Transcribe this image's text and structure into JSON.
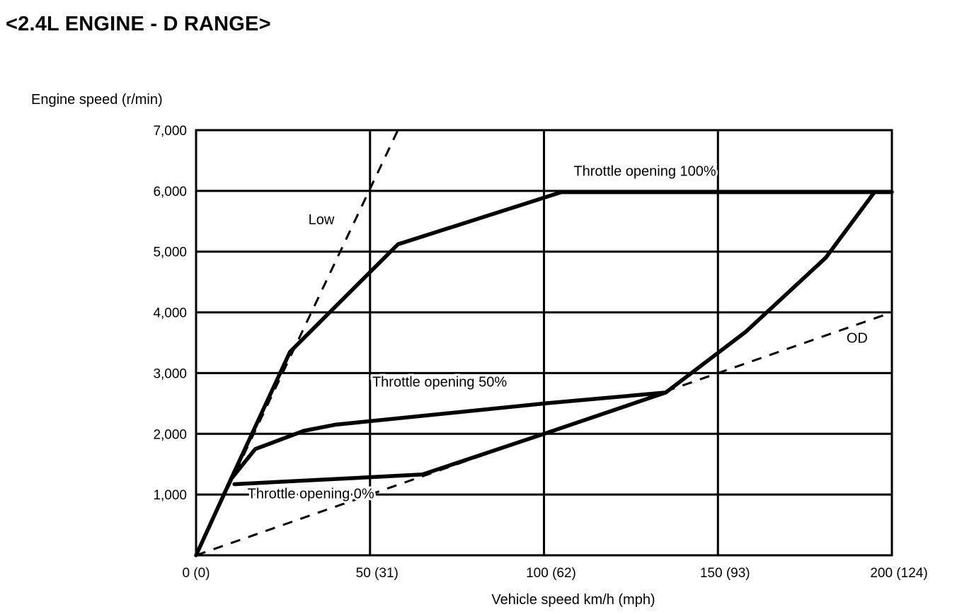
{
  "title": "<2.4L ENGINE - D RANGE>",
  "chart_data": {
    "type": "line",
    "title": "<2.4L ENGINE - D RANGE>",
    "xlabel": "Vehicle speed  km/h (mph)",
    "ylabel": "Engine speed (r/min)",
    "xlim": [
      0,
      200
    ],
    "ylim": [
      0,
      7000
    ],
    "grid": true,
    "x_ticks": [
      {
        "value": 0,
        "label": "0 (0)"
      },
      {
        "value": 50,
        "label": "50 (31)"
      },
      {
        "value": 100,
        "label": "100 (62)"
      },
      {
        "value": 150,
        "label": "150 (93)"
      },
      {
        "value": 200,
        "label": "200 (124)"
      }
    ],
    "y_ticks": [
      {
        "value": 1000,
        "label": "1,000"
      },
      {
        "value": 2000,
        "label": "2,000"
      },
      {
        "value": 3000,
        "label": "3,000"
      },
      {
        "value": 4000,
        "label": "4,000"
      },
      {
        "value": 5000,
        "label": "5,000"
      },
      {
        "value": 6000,
        "label": "6,000"
      },
      {
        "value": 7000,
        "label": "7,000"
      }
    ],
    "series": [
      {
        "name": "Throttle opening 100%",
        "style": "solid",
        "x": [
          0,
          10,
          27,
          58,
          105,
          200
        ],
        "y": [
          0,
          1250,
          3350,
          5120,
          5980,
          5980
        ]
      },
      {
        "name": "Throttle opening 50%",
        "style": "solid",
        "x": [
          10,
          17,
          31,
          40,
          100,
          135,
          158,
          181,
          195
        ],
        "y": [
          1250,
          1750,
          2050,
          2150,
          2500,
          2680,
          3680,
          4900,
          5980
        ]
      },
      {
        "name": "Throttle opening 0%",
        "style": "solid",
        "x": [
          11,
          65,
          100,
          135
        ],
        "y": [
          1170,
          1330,
          2000,
          2680
        ]
      },
      {
        "name": "Low",
        "style": "dashed",
        "x": [
          0,
          58
        ],
        "y": [
          0,
          7000
        ]
      },
      {
        "name": "OD",
        "style": "dashed",
        "x": [
          0,
          200
        ],
        "y": [
          0,
          4000
        ]
      }
    ],
    "annotations": [
      {
        "text": "Throttle opening 100%",
        "x": 129,
        "y": 6250
      },
      {
        "text": "Throttle opening 50%",
        "x": 70,
        "y": 2780
      },
      {
        "text": "Throttle opening 0%",
        "x": 33,
        "y": 940
      },
      {
        "text": "Low",
        "x": 36,
        "y": 5450
      },
      {
        "text": "OD",
        "x": 190,
        "y": 3500
      }
    ]
  }
}
